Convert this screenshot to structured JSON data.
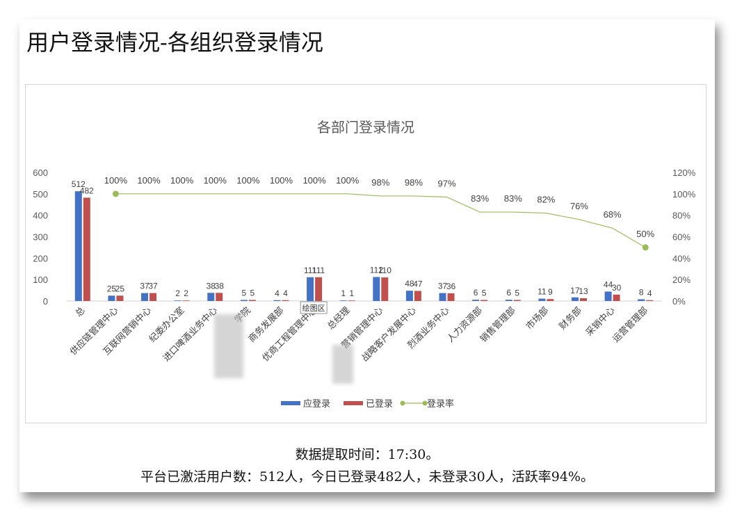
{
  "page": {
    "title": "用户登录情况-各组织登录情况",
    "footer_line1": "数据提取时间：17:30。",
    "footer_line2": "平台已激活用户数：512人，今日已登录482人，未登录30人，活跃率94%。"
  },
  "chart_data": {
    "type": "bar",
    "title": "各部门登录情况",
    "categories": [
      "总",
      "供应链管理中心",
      "互联网营销中心",
      "纪委办公室",
      "进口啤酒业务中心",
      "学院",
      "商务发展部",
      "优商工程管理中心",
      "总经理",
      "营销管理中心",
      "战略客户发展中心",
      "烈酒业务中心",
      "人力资源部",
      "销售管理部",
      "市场部",
      "财务部",
      "采销中心",
      "运营管理部"
    ],
    "series": [
      {
        "name": "应登录",
        "type": "bar",
        "axis": "left",
        "color": "#4472C4",
        "values": [
          512,
          25,
          37,
          2,
          38,
          5,
          4,
          111,
          1,
          112,
          48,
          37,
          6,
          6,
          11,
          17,
          44,
          8
        ]
      },
      {
        "name": "已登录",
        "type": "bar",
        "axis": "left",
        "color": "#C0504D",
        "values": [
          482,
          25,
          37,
          2,
          38,
          5,
          4,
          111,
          1,
          110,
          47,
          36,
          5,
          5,
          9,
          13,
          30,
          4
        ]
      },
      {
        "name": "登录率",
        "type": "line",
        "axis": "right",
        "color": "#9BBB59",
        "values": [
          null,
          100,
          100,
          100,
          100,
          100,
          100,
          100,
          100,
          98,
          98,
          97,
          83,
          83,
          82,
          76,
          68,
          50
        ]
      }
    ],
    "bar_labels": {
      "应登录": [
        "512",
        "25",
        "37",
        "2",
        "38",
        "5",
        "4",
        "111",
        "1",
        "112",
        "48",
        "37",
        "6",
        "6",
        "11",
        "17",
        "44",
        "8"
      ],
      "已登录": [
        "482",
        "25",
        "37",
        "2",
        "38",
        "5",
        "4",
        "111",
        "1",
        "110",
        "47",
        "36",
        "5",
        "5",
        "9",
        "13",
        "30",
        "4"
      ]
    },
    "rate_labels": [
      "",
      "100%",
      "100%",
      "100%",
      "100%",
      "100%",
      "100%",
      "100%",
      "100%",
      "98%",
      "98%",
      "97%",
      "83%",
      "83%",
      "82%",
      "76%",
      "68%",
      "50%"
    ],
    "y_left": {
      "min": 0,
      "max": 600,
      "ticks": [
        "0",
        "100",
        "200",
        "300",
        "400",
        "500",
        "600"
      ]
    },
    "y_right": {
      "min": 0,
      "max": 120,
      "ticks": [
        "0%",
        "20%",
        "40%",
        "60%",
        "80%",
        "100%",
        "120%"
      ]
    },
    "legend_position": "bottom",
    "grid": false,
    "tooltip": "绘图区"
  }
}
